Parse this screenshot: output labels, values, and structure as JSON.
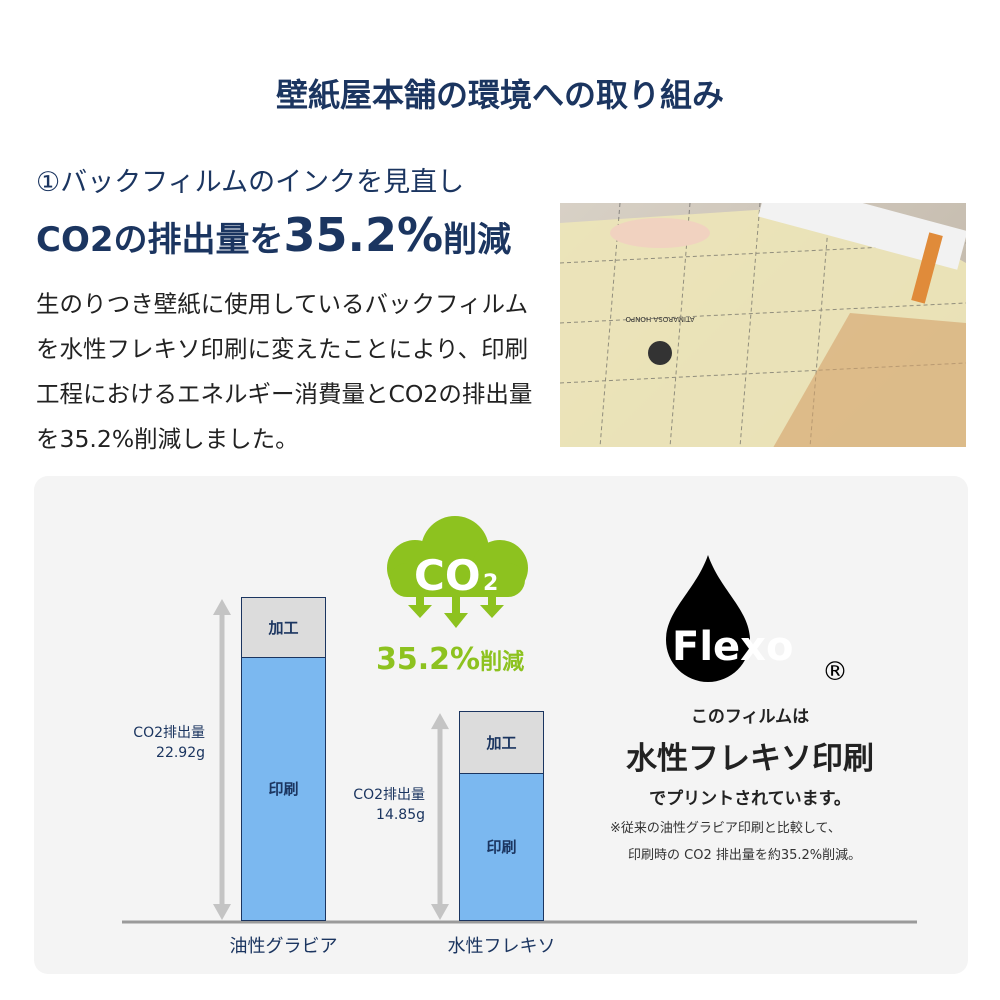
{
  "title": "壁紙屋本舗の環境への取り組み",
  "section": {
    "subtitle": "①バックフィルムのインクを見直し",
    "headline_prefix": "CO2の排出量を",
    "headline_value": "35.2%",
    "headline_suffix": "削減",
    "body": "生のりつき壁紙に使用しているバックフィルムを水性フレキソ印刷に変えたことにより、印刷工程におけるエネルギー消費量とCO2の排出量を35.2%削減しました。"
  },
  "photo": {
    "alt_logo_text": "ATIMAROSA HONPO"
  },
  "badge": {
    "cloud_text": "CO",
    "cloud_sub": "2",
    "reduction": "35.2%",
    "reduction_suffix": "削減",
    "color": "#8dc21f"
  },
  "flexo": {
    "logo": "Flexo",
    "registered": "®",
    "line1": "このフィルムは",
    "line2": "水性フレキソ印刷",
    "line3": "でプリントされています。",
    "note1": "※従来の油性グラビア印刷と比較して、",
    "note2": "印刷時の CO2 排出量を約35.2%削減。"
  },
  "chart_data": {
    "type": "bar",
    "stacked": true,
    "categories": [
      "油性グラビア",
      "水性フレキソ"
    ],
    "series": [
      {
        "name": "印刷",
        "values": [
          18.7,
          10.5
        ],
        "color": "#7bb8f0"
      },
      {
        "name": "加工",
        "values": [
          4.22,
          4.35
        ],
        "color": "#dcdcdc"
      }
    ],
    "totals": [
      22.92,
      14.85
    ],
    "total_labels": [
      [
        "CO2排出量",
        "22.92g"
      ],
      [
        "CO2排出量",
        "14.85g"
      ]
    ],
    "unit": "g",
    "ylim": [
      0,
      22.92
    ],
    "grid": false
  }
}
